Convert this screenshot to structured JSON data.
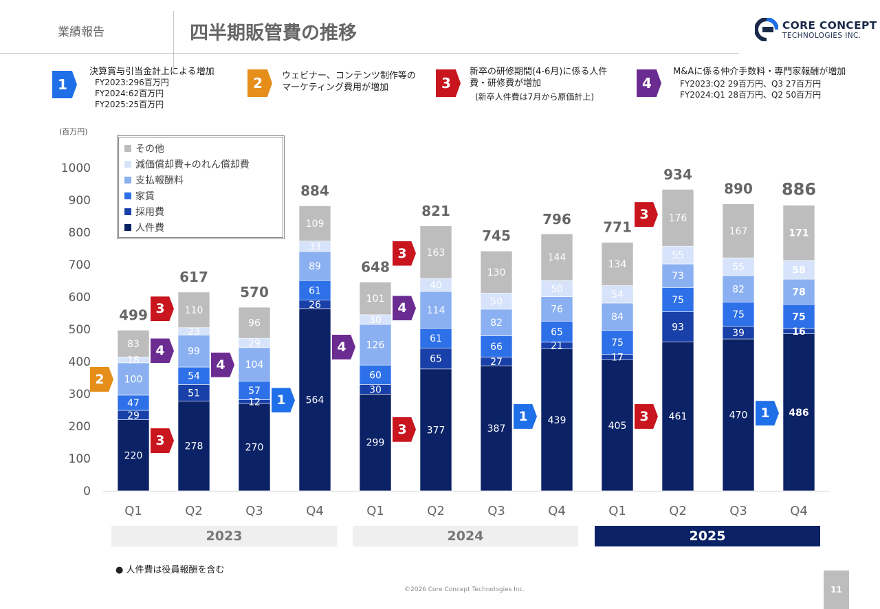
{
  "header": {
    "section": "業績報告",
    "title": "四半期販管費の推移",
    "logo": {
      "line1": "CORE CONCEPT",
      "line2": "TECHNOLOGIES INC."
    }
  },
  "notes": [
    {
      "num": "1",
      "color": "#1e6fe8",
      "title": "決算賞与引当金計上による増加",
      "lines": [
        "FY2023:296百万円",
        "FY2024:62百万円",
        "FY2025:25百万円"
      ]
    },
    {
      "num": "2",
      "color": "#e58e1a",
      "title": "ウェビナー、コンテンツ制作等のマーケティング費用が増加",
      "lines": []
    },
    {
      "num": "3",
      "color": "#c8151e",
      "title": "新卒の研修期間(4-6月)に係る人件費・研修費が増加",
      "lines": [
        "(新卒人件費は7月から原価計上)"
      ]
    },
    {
      "num": "4",
      "color": "#6b2c91",
      "title": "M&Aに係る仲介手数料・専門家報酬が増加",
      "lines": [
        "FY2023:Q2 29百万円、Q3 27百万円",
        "FY2024:Q1 28百万円、Q2 50百万円"
      ]
    }
  ],
  "unit_label": "(百万円)",
  "chart_data": {
    "type": "bar",
    "stacked": true,
    "ylim": [
      0,
      1000
    ],
    "yticks": [
      0,
      100,
      200,
      300,
      400,
      500,
      600,
      700,
      800,
      900,
      1000
    ],
    "categories": [
      "Q1",
      "Q2",
      "Q3",
      "Q4",
      "Q1",
      "Q2",
      "Q3",
      "Q4",
      "Q1",
      "Q2",
      "Q3",
      "Q4"
    ],
    "years": [
      {
        "label": "2023",
        "quarters": 4,
        "highlight": false
      },
      {
        "label": "2024",
        "quarters": 4,
        "highlight": false
      },
      {
        "label": "2025",
        "quarters": 4,
        "highlight": true
      }
    ],
    "series": [
      {
        "name": "人件費",
        "color": "#0b2266",
        "values": [
          220,
          278,
          270,
          564,
          299,
          377,
          387,
          439,
          405,
          461,
          470,
          486
        ]
      },
      {
        "name": "採用費",
        "color": "#1840a8",
        "values": [
          29,
          51,
          12,
          26,
          30,
          65,
          27,
          21,
          17,
          93,
          39,
          16
        ]
      },
      {
        "name": "家賃",
        "color": "#2e70e8",
        "values": [
          47,
          54,
          57,
          61,
          60,
          61,
          66,
          65,
          75,
          75,
          75,
          75
        ]
      },
      {
        "name": "支払報酬料",
        "color": "#8ab0f2",
        "values": [
          100,
          99,
          104,
          89,
          126,
          114,
          82,
          76,
          84,
          73,
          82,
          78
        ]
      },
      {
        "name": "減価償却費+のれん償却費",
        "color": "#d6e3fa",
        "values": [
          18,
          23,
          29,
          33,
          30,
          40,
          50,
          50,
          54,
          55,
          55,
          58
        ]
      },
      {
        "name": "その他",
        "color": "#bdbdbd",
        "values": [
          83,
          110,
          96,
          109,
          101,
          163,
          130,
          144,
          134,
          176,
          167,
          171
        ]
      }
    ],
    "totals": [
      499,
      617,
      570,
      884,
      648,
      821,
      745,
      796,
      771,
      934,
      890,
      886
    ],
    "legend_order": [
      "その他",
      "減価償却費+のれん償却費",
      "支払報酬料",
      "家賃",
      "採用費",
      "人件費"
    ],
    "legend_labels": [
      "その他",
      "減価償却費+のれん償却費",
      "支払報酬料",
      "家賃",
      "採用費",
      "人件費"
    ],
    "annotations": [
      {
        "num": "2",
        "color": "#e58e1a",
        "bar": 0,
        "value": 345
      },
      {
        "num": "3",
        "color": "#c8151e",
        "bar": 1,
        "value": 563
      },
      {
        "num": "4",
        "color": "#6b2c91",
        "bar": 1,
        "value": 433
      },
      {
        "num": "3",
        "color": "#c8151e",
        "bar": 1,
        "value": 155
      },
      {
        "num": "4",
        "color": "#6b2c91",
        "bar": 2,
        "value": 390
      },
      {
        "num": "1",
        "color": "#1e6fe8",
        "bar": 3,
        "value": 280
      },
      {
        "num": "4",
        "color": "#6b2c91",
        "bar": 4,
        "value": 445
      },
      {
        "num": "3",
        "color": "#c8151e",
        "bar": 5,
        "value": 735
      },
      {
        "num": "4",
        "color": "#6b2c91",
        "bar": 5,
        "value": 565
      },
      {
        "num": "3",
        "color": "#c8151e",
        "bar": 5,
        "value": 190
      },
      {
        "num": "1",
        "color": "#1e6fe8",
        "bar": 7,
        "value": 230
      },
      {
        "num": "3",
        "color": "#c8151e",
        "bar": 9,
        "value": 855
      },
      {
        "num": "3",
        "color": "#c8151e",
        "bar": 9,
        "value": 230
      },
      {
        "num": "1",
        "color": "#1e6fe8",
        "bar": 11,
        "value": 240
      }
    ]
  },
  "footnote": "● 人件費は役員報酬を含む",
  "copyright": "©2026 Core Concept Technologies Inc.",
  "page_number": "11"
}
